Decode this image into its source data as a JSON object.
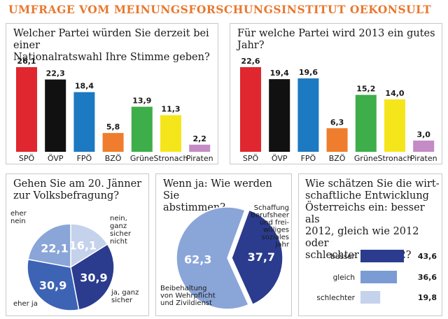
{
  "header": {
    "title": "UMFRAGE VOM MEINUNGSFORSCHUNGSINSTITUT OEKONSULT"
  },
  "panels": {
    "p1": {
      "title_l1": "Welcher Partei würden Sie derzeit bei einer",
      "title_l2": "Nationalratswahl Ihre Stimme geben?"
    },
    "p2": {
      "title_l1": "Für welche Partei wird 2013 ein gutes Jahr?"
    },
    "p3": {
      "title_l1": "Gehen Sie am 20. Jänner",
      "title_l2": "zur Volksbefragung?"
    },
    "p4": {
      "title_l1": "Wenn ja: Wie werden Sie",
      "title_l2": "abstimmen?"
    },
    "p5": {
      "title_l1": "Wie schätzen Sie die wirt-",
      "title_l2": "schaftliche Entwicklung",
      "title_l3": "Österreichs ein: besser als",
      "title_l4": "2012, gleich wie 2012 oder",
      "title_l5": "schlechter als 2012?"
    }
  },
  "chart_data": [
    {
      "type": "bar",
      "title": "Welcher Partei würden Sie derzeit bei einer Nationalratswahl Ihre Stimme geben?",
      "categories": [
        "SPÖ",
        "ÖVP",
        "FPÖ",
        "BZÖ",
        "Grüne",
        "Stronach",
        "Piraten"
      ],
      "values": [
        26.1,
        22.3,
        18.4,
        5.8,
        13.9,
        11.3,
        2.2
      ],
      "labels": [
        "26,1",
        "22,3",
        "18,4",
        "5,8",
        "13,9",
        "11,3",
        "2,2"
      ],
      "colors": [
        "#e0272f",
        "#111111",
        "#1b7ac2",
        "#ef7d2d",
        "#3dae49",
        "#f5e61b",
        "#c48bc6"
      ],
      "ylim": [
        0,
        26.1
      ]
    },
    {
      "type": "bar",
      "title": "Für welche Partei wird 2013 ein gutes Jahr?",
      "categories": [
        "SPÖ",
        "ÖVP",
        "FPÖ",
        "BZÖ",
        "Grüne",
        "Stronach",
        "Piraten"
      ],
      "values": [
        22.6,
        19.4,
        19.6,
        6.3,
        15.2,
        14.0,
        3.0
      ],
      "labels": [
        "22,6",
        "19,4",
        "19,6",
        "6,3",
        "15,2",
        "14,0",
        "3,0"
      ],
      "colors": [
        "#e0272f",
        "#111111",
        "#1b7ac2",
        "#ef7d2d",
        "#3dae49",
        "#f5e61b",
        "#c48bc6"
      ],
      "ylim": [
        0,
        22.6
      ]
    },
    {
      "type": "pie",
      "title": "Gehen Sie am 20. Jänner zur Volksbefragung?",
      "slices": [
        {
          "name": "nein, ganz sicher nicht",
          "value": 16.1,
          "label": "16,1",
          "color": "#c5d2ec",
          "text_color": "#ffffff"
        },
        {
          "name": "ja, ganz sicher",
          "value": 30.9,
          "label": "30,9",
          "color": "#2b3c8e",
          "text_color": "#ffffff"
        },
        {
          "name": "eher ja",
          "value": 30.9,
          "label": "30,9",
          "color": "#3d63b5",
          "text_color": "#ffffff"
        },
        {
          "name": "eher nein",
          "value": 22.1,
          "label": "22,1",
          "color": "#8aa5d8",
          "text_color": "#ffffff"
        }
      ],
      "legend_labels": {
        "eher_nein": [
          "eher",
          "nein"
        ],
        "nein_ganz": [
          "nein,",
          "ganz",
          "sicher",
          "nicht"
        ],
        "ja_ganz": [
          "ja, ganz",
          "sicher"
        ],
        "eher_ja": [
          "eher ja"
        ]
      }
    },
    {
      "type": "pie",
      "title": "Wenn ja: Wie werden Sie abstimmen?",
      "slices": [
        {
          "name": "Schaffung Berufsheer und freiwilliges soziales Jahr",
          "value": 37.7,
          "label": "37,7",
          "color": "#2b3c8e"
        },
        {
          "name": "Beibehaltung von Wehrpflicht und Zivildienst",
          "value": 62.3,
          "label": "62,3",
          "color": "#8aa5d8"
        }
      ],
      "legend_labels": {
        "schaffung": [
          "Schaffung",
          "Berufsheer",
          "und frei-",
          "williges",
          "soziales",
          "Jahr"
        ],
        "beibehaltung": [
          "Beibehaltung",
          "von Wehrpflicht",
          "und Zivildienst"
        ]
      }
    },
    {
      "type": "bar",
      "orientation": "horizontal",
      "title": "Wie schätzen Sie die wirtschaftliche Entwicklung Österreichs ein: besser als 2012, gleich wie 2012 oder schlechter als 2012?",
      "categories": [
        "besser",
        "gleich",
        "schlechter"
      ],
      "values": [
        43.6,
        36.6,
        19.8
      ],
      "labels": [
        "43,6",
        "36,6",
        "19,8"
      ],
      "colors": [
        "#2b3c8e",
        "#7b9bd4",
        "#c5d2ec"
      ],
      "xlim": [
        0,
        43.6
      ]
    }
  ]
}
